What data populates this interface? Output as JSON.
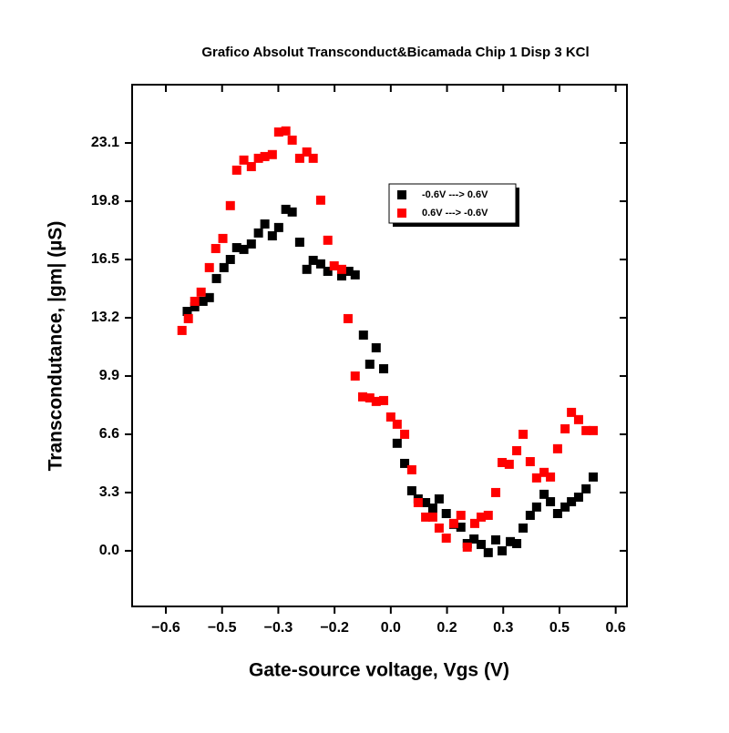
{
  "chart_data": {
    "type": "scatter",
    "title": "Grafico Absolut Transconduct&Bicamada Chip 1 Disp 3 KCl",
    "x_label": "Gate-source voltage, Vgs (V)",
    "y_label": "Transcondutance, |gm| (µS)",
    "xlim": [
      -0.69,
      0.63
    ],
    "ylim": [
      -3.15,
      26.4
    ],
    "xticks": [
      {
        "value": -0.6,
        "label": "−0.6"
      },
      {
        "value": -0.45,
        "label": "−0.5"
      },
      {
        "value": -0.3,
        "label": "−0.3"
      },
      {
        "value": -0.15,
        "label": "−0.2"
      },
      {
        "value": 0,
        "label": "0.0"
      },
      {
        "value": 0.15,
        "label": "0.2"
      },
      {
        "value": 0.3,
        "label": "0.3"
      },
      {
        "value": 0.45,
        "label": "0.5"
      },
      {
        "value": 0.6,
        "label": "0.6"
      }
    ],
    "yticks": [
      {
        "value": 0,
        "label": "0.0"
      },
      3.3,
      6.6,
      9.9,
      13.2,
      16.5,
      19.8,
      23.1
    ],
    "legend_position": "upper-right",
    "series": [
      {
        "name": "-0.6V ---> 0.6V",
        "color": "#000000",
        "x": [
          -0.543,
          -0.523,
          -0.501,
          -0.484,
          -0.465,
          -0.445,
          -0.428,
          -0.411,
          -0.392,
          -0.372,
          -0.353,
          -0.336,
          -0.316,
          -0.299,
          -0.28,
          -0.263,
          -0.243,
          -0.224,
          -0.207,
          -0.187,
          -0.168,
          -0.131,
          -0.112,
          -0.095,
          -0.073,
          -0.056,
          -0.039,
          -0.019,
          0.017,
          0.037,
          0.056,
          0.073,
          0.093,
          0.112,
          0.129,
          0.148,
          0.168,
          0.187,
          0.204,
          0.222,
          0.241,
          0.26,
          0.28,
          0.297,
          0.319,
          0.336,
          0.353,
          0.372,
          0.389,
          0.409,
          0.426,
          0.445,
          0.465,
          0.482,
          0.501,
          0.521,
          0.54
        ],
        "values": [
          13.56,
          13.82,
          14.13,
          14.34,
          15.42,
          16.04,
          16.5,
          17.17,
          17.07,
          17.38,
          18.0,
          18.51,
          17.84,
          18.31,
          19.34,
          19.19,
          17.48,
          15.94,
          16.45,
          16.25,
          15.83,
          15.57,
          15.83,
          15.63,
          12.22,
          10.57,
          11.5,
          10.31,
          6.09,
          4.95,
          3.4,
          2.94,
          2.73,
          2.42,
          2.94,
          2.11,
          1.5,
          1.34,
          0.41,
          0.67,
          0.36,
          -0.1,
          0.62,
          0.0,
          0.52,
          0.41,
          1.29,
          2.01,
          2.48,
          3.2,
          2.78,
          2.11,
          2.48,
          2.78,
          3.04,
          3.51,
          4.18
        ]
      },
      {
        "name": "0.6V ---> -0.6V",
        "color": "#ff0000",
        "x": [
          -0.557,
          -0.54,
          -0.523,
          -0.506,
          -0.484,
          -0.467,
          -0.448,
          -0.428,
          -0.411,
          -0.392,
          -0.372,
          -0.353,
          -0.336,
          -0.316,
          -0.299,
          -0.28,
          -0.263,
          -0.243,
          -0.224,
          -0.207,
          -0.187,
          -0.168,
          -0.151,
          -0.131,
          -0.114,
          -0.095,
          -0.075,
          -0.056,
          -0.039,
          -0.019,
          0,
          0.017,
          0.037,
          0.056,
          0.073,
          0.093,
          0.112,
          0.129,
          0.148,
          0.168,
          0.187,
          0.204,
          0.224,
          0.241,
          0.26,
          0.28,
          0.297,
          0.316,
          0.336,
          0.353,
          0.372,
          0.389,
          0.409,
          0.426,
          0.445,
          0.465,
          0.482,
          0.501,
          0.521,
          0.54
        ],
        "values": [
          12.48,
          13.15,
          14.13,
          14.65,
          16.04,
          17.12,
          17.69,
          19.55,
          21.56,
          22.13,
          21.76,
          22.23,
          22.33,
          22.44,
          23.72,
          23.78,
          23.26,
          22.23,
          22.59,
          22.23,
          19.86,
          17.59,
          16.14,
          15.94,
          13.15,
          9.9,
          8.72,
          8.66,
          8.46,
          8.51,
          7.58,
          7.17,
          6.6,
          4.59,
          2.73,
          1.91,
          1.91,
          1.29,
          0.72,
          1.55,
          2.01,
          0.21,
          1.55,
          1.91,
          2.01,
          3.3,
          5.0,
          4.9,
          5.67,
          6.6,
          5.05,
          4.13,
          4.44,
          4.18,
          5.78,
          6.91,
          7.84,
          7.43,
          6.81,
          6.81
        ]
      }
    ]
  }
}
